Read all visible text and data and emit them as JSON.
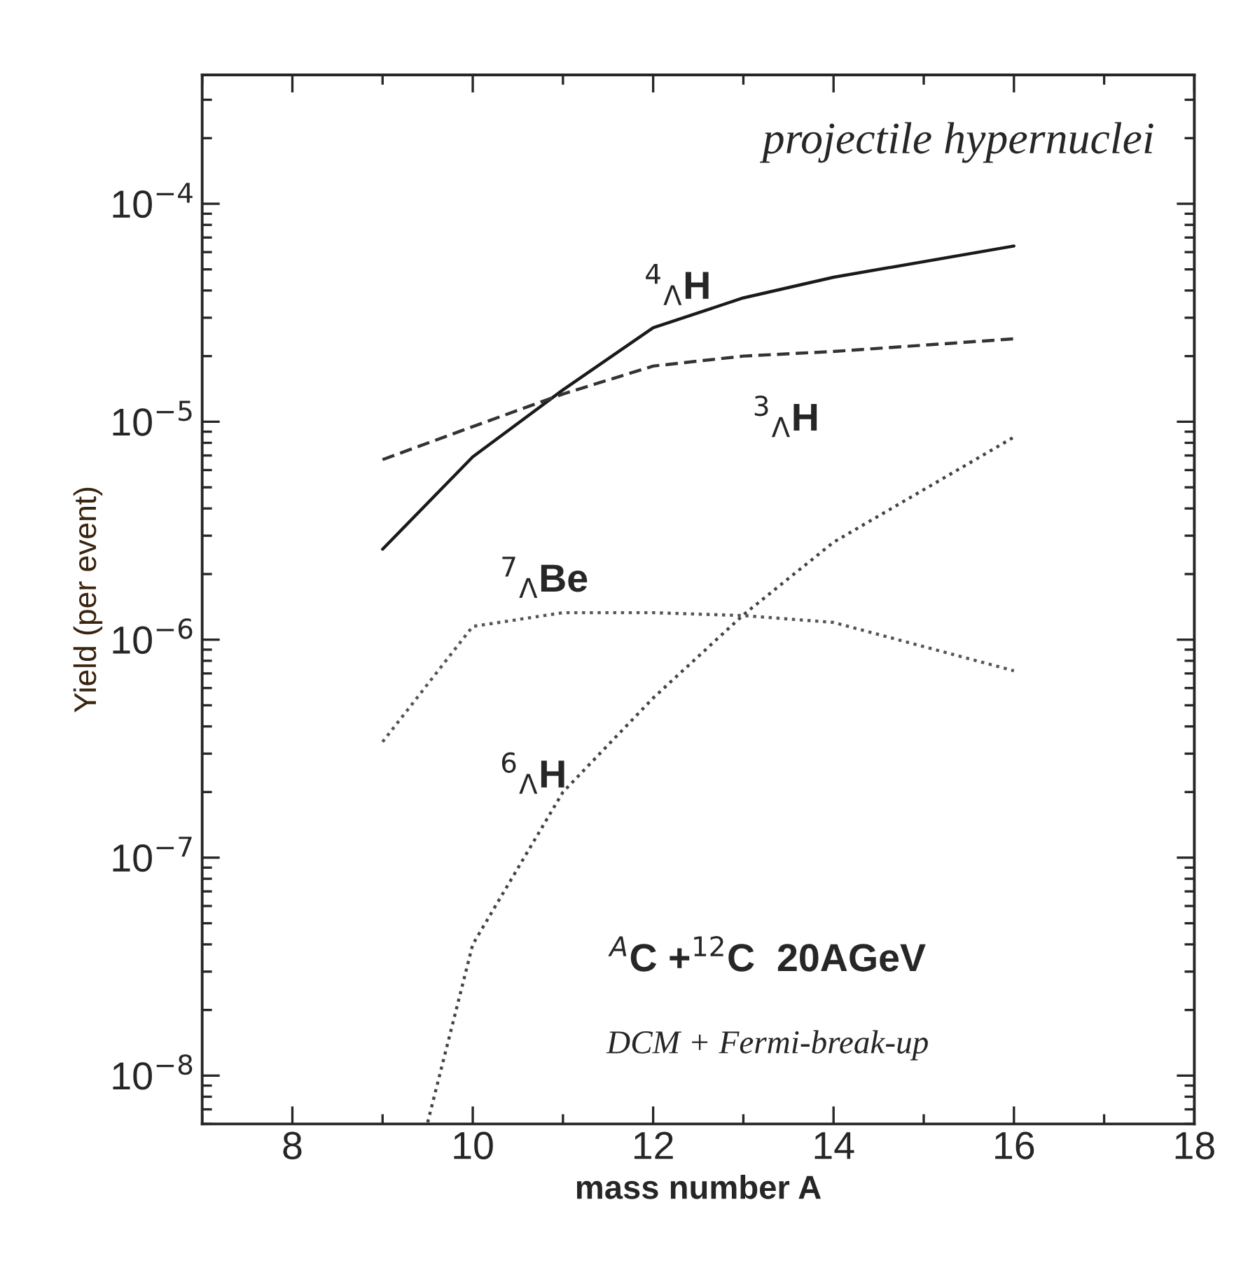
{
  "chart_data": {
    "type": "line",
    "title": "projectile hypernuclei",
    "xlabel": "mass number A",
    "ylabel": "Yield (per event)",
    "log": "y",
    "xlim": [
      7,
      18
    ],
    "xticks": [
      8,
      10,
      12,
      14,
      16,
      18
    ],
    "ylim": [
      6e-09,
      0.00039
    ],
    "yticks": [
      {
        "value": 1e-08,
        "label": "10$^{−8}$"
      },
      {
        "value": 1e-07,
        "label": "10$^{−7}$"
      },
      {
        "value": 1e-06,
        "label": "10$^{−6}$"
      },
      {
        "value": 1e-05,
        "label": "10$^{−5}$"
      },
      {
        "value": 0.0001,
        "label": "10$^{−4}$"
      }
    ],
    "grid": false,
    "marker": "none",
    "series": [
      {
        "name": "$^{4}$$_{Λ}$H",
        "color": "#1a1a1a",
        "line_style": "solid",
        "x": [
          9,
          10,
          11,
          12,
          13,
          14,
          16
        ],
        "values": [
          2.6e-06,
          6.9e-06,
          1.4e-05,
          2.7e-05,
          3.7e-05,
          4.6e-05,
          6.4e-05
        ]
      },
      {
        "name": "$^{3}$$_{Λ}$H",
        "color": "#333333",
        "line_style": "dashed",
        "x": [
          9,
          10,
          11,
          12,
          13,
          14,
          16
        ],
        "values": [
          6.7e-06,
          9.5e-06,
          1.34e-05,
          1.8e-05,
          2e-05,
          2.1e-05,
          2.4e-05
        ]
      },
      {
        "name": "$^{7}$$_{Λ}$Be",
        "color": "#555555",
        "line_style": "dotted",
        "x": [
          9,
          10,
          11,
          12,
          13,
          14,
          16
        ],
        "values": [
          3.4e-07,
          1.15e-06,
          1.33e-06,
          1.33e-06,
          1.29e-06,
          1.2e-06,
          7.2e-07
        ]
      },
      {
        "name": "$^{6}$$_{Λ}$H",
        "color": "#444444",
        "line_style": "dotted",
        "x": [
          9.5,
          10,
          11,
          12,
          13,
          14,
          16
        ],
        "values": [
          6.1e-09,
          4e-08,
          2e-07,
          5.4e-07,
          1.3e-06,
          2.8e-06,
          8.5e-06
        ]
      }
    ],
    "annotations": [
      "$^{A}$C +$^{12}$C  20AGeV",
      "DCM + Fermi-break-up"
    ]
  }
}
